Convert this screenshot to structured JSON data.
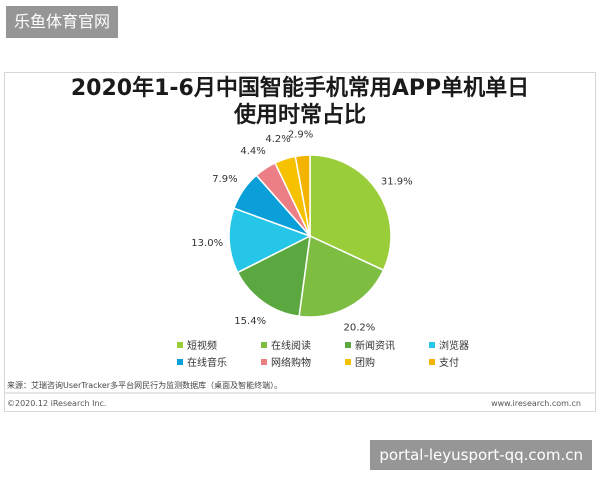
{
  "watermark_top": "乐鱼体育官网",
  "watermark_bottom": "portal-leyusport-qq.com.cn",
  "chart_data": {
    "type": "pie",
    "title_line1": "2020年1-6月中国智能手机常用APP单机单日",
    "title_line2": "使用时常占比",
    "slices": [
      {
        "label": "短视频",
        "value": 31.9,
        "display": "31.9%",
        "color": "#9acd3a"
      },
      {
        "label": "在线阅读",
        "value": 20.2,
        "display": "20.2%",
        "color": "#7cbd42"
      },
      {
        "label": "新闻资讯",
        "value": 15.4,
        "display": "15.4%",
        "color": "#5aa83f"
      },
      {
        "label": "浏览器",
        "value": 13.0,
        "display": "13.0%",
        "color": "#26c6e8"
      },
      {
        "label": "在线音乐",
        "value": 7.9,
        "display": "7.9%",
        "color": "#0a9fd9"
      },
      {
        "label": "网络购物",
        "value": 4.4,
        "display": "4.4%",
        "color": "#ec7f86"
      },
      {
        "label": "团购",
        "value": 4.2,
        "display": "4.2%",
        "color": "#f6c200"
      },
      {
        "label": "支付",
        "value": 2.9,
        "display": "2.9%",
        "color": "#f3b400"
      }
    ],
    "legend_position": "bottom"
  },
  "source_text": "来源：艾瑞咨询UserTracker多平台网民行为监测数据库（桌面及智能终端）。",
  "copyright": "©2020.12 iResearch Inc.",
  "website": "www.iresearch.com.cn"
}
